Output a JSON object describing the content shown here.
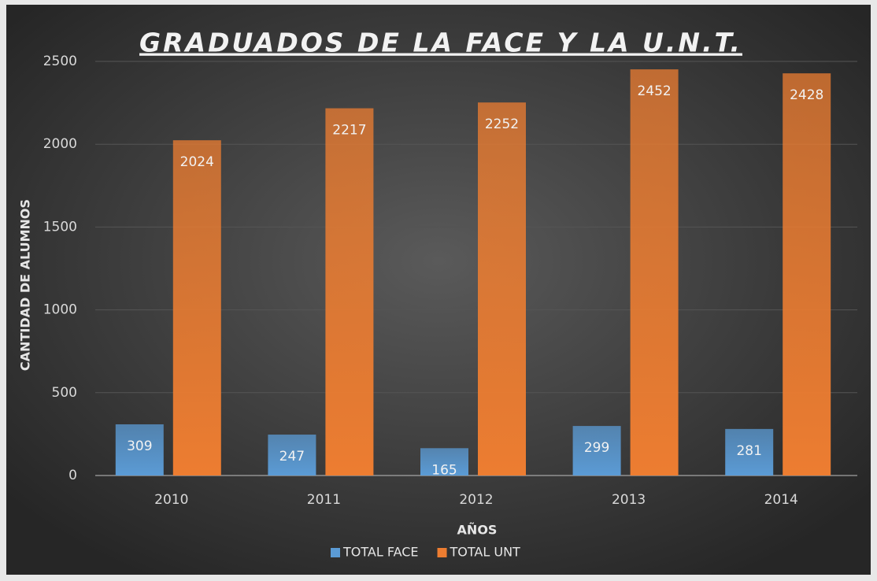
{
  "chart_data": {
    "type": "bar",
    "title": "GRADUADOS DE LA FACE Y LA U.N.T.",
    "x_label": "AÑOS",
    "y_label": "CANTIDAD DE ALUMNOS",
    "categories": [
      "2010",
      "2011",
      "2012",
      "2013",
      "2014"
    ],
    "series": [
      {
        "name": "TOTAL FACE",
        "color": "#5b9bd5",
        "values": [
          309,
          247,
          165,
          299,
          281
        ]
      },
      {
        "name": "TOTAL UNT",
        "color": "#ed7d31",
        "values": [
          2024,
          2217,
          2252,
          2452,
          2428
        ]
      }
    ],
    "ylim": [
      0,
      2500
    ],
    "yticks": [
      0,
      500,
      1000,
      1500,
      2000,
      2500
    ],
    "grid": true,
    "legend": "bottom"
  }
}
